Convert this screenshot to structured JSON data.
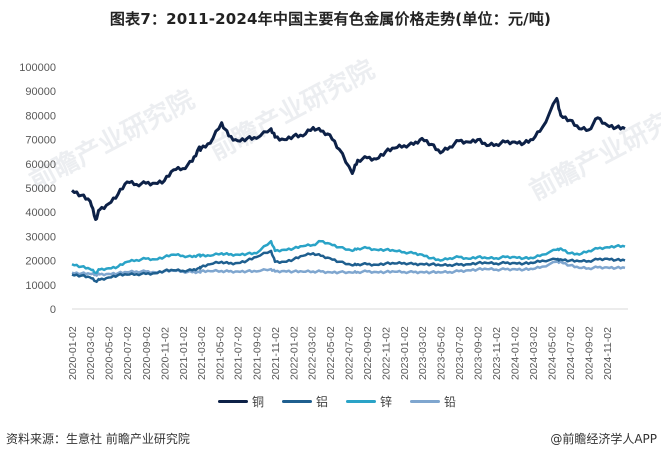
{
  "title": "图表7：2011-2024年中国主要有色金属价格走势(单位：元/吨)",
  "footer": {
    "source": "资料来源：生意社 前瞻产业研究院",
    "credit": "@前瞻经济学人APP"
  },
  "watermarks": [
    "前瞻产业研究院",
    "前瞻产业研究院",
    "前瞻产业研究院"
  ],
  "colors": {
    "copper": "#0d2147",
    "aluminum": "#1f5f8f",
    "zinc": "#2aa3c7",
    "lead": "#7fa6cf",
    "axis": "#d9d9d9",
    "tick_text": "#595959"
  },
  "chart_data": {
    "type": "line",
    "title": "图表7：2011-2024年中国主要有色金属价格走势(单位：元/吨)",
    "xlabel": "",
    "ylabel": "元/吨",
    "ylim": [
      0,
      100000
    ],
    "yticks": [
      0,
      10000,
      20000,
      30000,
      40000,
      50000,
      60000,
      70000,
      80000,
      90000,
      100000
    ],
    "grid": false,
    "legend_position": "bottom",
    "x_tick_labels": [
      "2020-01-02",
      "2020-03-02",
      "2020-05-02",
      "2020-07-02",
      "2020-09-02",
      "2020-11-02",
      "2021-01-02",
      "2021-03-02",
      "2021-05-02",
      "2021-07-02",
      "2021-09-02",
      "2021-11-02",
      "2022-01-02",
      "2022-03-02",
      "2022-05-02",
      "2022-07-02",
      "2022-09-02",
      "2022-11-02",
      "2023-01-02",
      "2023-03-02",
      "2023-05-02",
      "2023-07-02",
      "2023-09-02",
      "2023-11-02",
      "2024-01-02",
      "2024-03-02",
      "2024-05-02",
      "2024-07-02",
      "2024-09-02",
      "2024-11-02"
    ],
    "x": [
      "2020-01-02",
      "2020-02-02",
      "2020-03-02",
      "2020-03-20",
      "2020-04-02",
      "2020-05-02",
      "2020-06-02",
      "2020-07-02",
      "2020-08-02",
      "2020-09-02",
      "2020-10-02",
      "2020-11-02",
      "2020-12-02",
      "2021-01-02",
      "2021-02-02",
      "2021-02-25",
      "2021-03-02",
      "2021-04-02",
      "2021-05-10",
      "2021-06-02",
      "2021-07-02",
      "2021-08-02",
      "2021-09-02",
      "2021-10-20",
      "2021-11-02",
      "2021-12-02",
      "2022-01-02",
      "2022-02-02",
      "2022-03-08",
      "2022-04-02",
      "2022-05-02",
      "2022-06-02",
      "2022-07-15",
      "2022-08-02",
      "2022-09-02",
      "2022-10-02",
      "2022-11-02",
      "2022-12-02",
      "2023-01-02",
      "2023-02-02",
      "2023-03-02",
      "2023-04-02",
      "2023-05-02",
      "2023-06-02",
      "2023-07-02",
      "2023-08-02",
      "2023-09-02",
      "2023-10-02",
      "2023-11-02",
      "2023-12-02",
      "2024-01-02",
      "2024-02-02",
      "2024-03-02",
      "2024-04-02",
      "2024-05-20",
      "2024-06-02",
      "2024-07-02",
      "2024-08-02",
      "2024-09-02",
      "2024-10-02",
      "2024-11-02",
      "2024-12-02",
      "2024-12-31"
    ],
    "series": [
      {
        "name": "铜",
        "values": [
          49000,
          47000,
          44500,
          37000,
          41000,
          43500,
          47500,
          52500,
          51500,
          52000,
          52000,
          53000,
          57500,
          58000,
          61000,
          67000,
          66000,
          68500,
          77000,
          71500,
          69500,
          70500,
          70500,
          74500,
          71000,
          70000,
          71500,
          71500,
          75000,
          73500,
          72000,
          66000,
          56000,
          61500,
          62500,
          62000,
          65000,
          66500,
          67500,
          68000,
          70500,
          68000,
          64500,
          67000,
          69500,
          69000,
          70000,
          67500,
          68000,
          69000,
          69000,
          68500,
          70000,
          75000,
          87000,
          80000,
          78000,
          74500,
          74000,
          79000,
          76000,
          75000,
          74500
        ]
      },
      {
        "name": "铝",
        "values": [
          14200,
          13800,
          13000,
          11500,
          12100,
          13000,
          14000,
          14200,
          14400,
          14500,
          14800,
          15800,
          16000,
          15800,
          16000,
          17000,
          17200,
          18500,
          19500,
          18800,
          19000,
          20000,
          21500,
          24000,
          19500,
          19500,
          20500,
          22000,
          23000,
          22000,
          21000,
          19500,
          18000,
          18500,
          18500,
          18300,
          18800,
          18800,
          19000,
          18500,
          18600,
          18500,
          18000,
          18200,
          18300,
          18500,
          19000,
          19000,
          18800,
          19000,
          19000,
          18800,
          19000,
          20000,
          20500,
          20500,
          20000,
          19700,
          19800,
          20500,
          20800,
          20300,
          20100
        ]
      },
      {
        "name": "锌",
        "values": [
          18500,
          17500,
          16500,
          15000,
          16300,
          16800,
          17500,
          19500,
          20200,
          20800,
          20500,
          21500,
          22500,
          22000,
          21500,
          22500,
          22000,
          22000,
          23000,
          22500,
          22500,
          22800,
          23000,
          28000,
          24000,
          24500,
          25000,
          26000,
          26500,
          28000,
          27000,
          25500,
          24000,
          25000,
          25200,
          24500,
          24500,
          24000,
          23500,
          23000,
          22500,
          21000,
          20000,
          21000,
          21500,
          20800,
          21500,
          21000,
          21000,
          21500,
          21500,
          21000,
          21000,
          22500,
          24500,
          25000,
          23000,
          22500,
          24000,
          25000,
          25500,
          26000,
          25800
        ]
      },
      {
        "name": "铅",
        "values": [
          15000,
          14700,
          14500,
          14200,
          14300,
          14500,
          14800,
          15200,
          15500,
          15500,
          15200,
          15600,
          15800,
          15500,
          15200,
          15400,
          15500,
          15600,
          15700,
          15500,
          15500,
          15600,
          15500,
          16500,
          15500,
          15700,
          15500,
          15400,
          15500,
          15500,
          15200,
          15200,
          15000,
          15300,
          15500,
          15300,
          15300,
          15400,
          15300,
          15200,
          15300,
          15200,
          15100,
          15300,
          15600,
          16000,
          16400,
          16500,
          16300,
          16400,
          16500,
          16300,
          16500,
          17500,
          19500,
          19500,
          18000,
          17000,
          16800,
          17200,
          17200,
          17000,
          17000
        ]
      }
    ]
  }
}
